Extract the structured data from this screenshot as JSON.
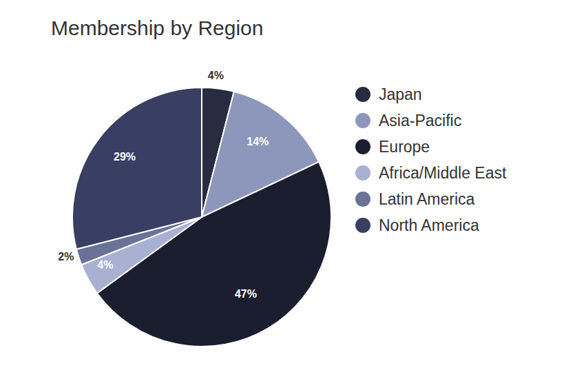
{
  "chart_data": {
    "type": "pie",
    "title": "Membership by Region",
    "categories": [
      "Japan",
      "Asia-Pacific",
      "Europe",
      "Africa/Middle East",
      "Latin America",
      "North America"
    ],
    "values": [
      4,
      14,
      47,
      4,
      2,
      29
    ],
    "value_labels": [
      "4%",
      "14%",
      "47%",
      "4%",
      "2%",
      "29%"
    ],
    "colors": [
      "#282c40",
      "#8d97bb",
      "#1b1e2f",
      "#a9b1d3",
      "#6a7297",
      "#383f62"
    ],
    "data_labels": true,
    "legend": "right"
  }
}
